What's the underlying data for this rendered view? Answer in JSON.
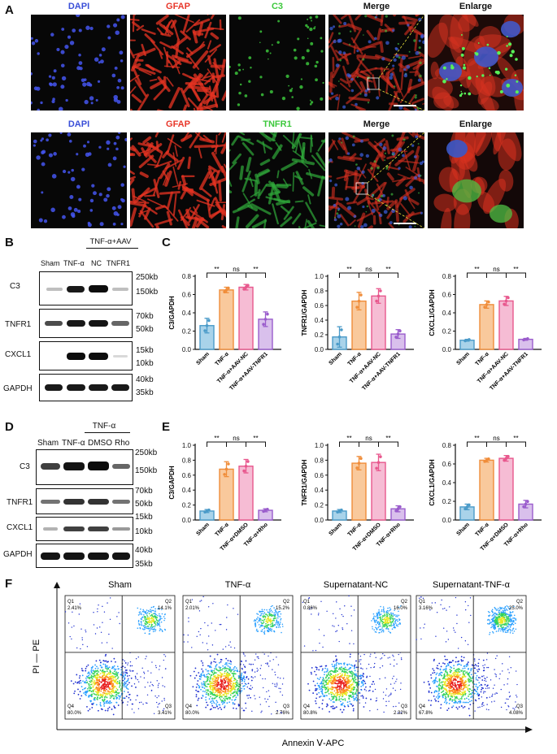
{
  "panels": {
    "A": "A",
    "B": "B",
    "C": "C",
    "D": "D",
    "E": "E",
    "F": "F"
  },
  "panelA": {
    "row1": [
      "DAPI",
      "GFAP",
      "C3",
      "Merge",
      "Enlarge"
    ],
    "row2": [
      "DAPI",
      "GFAP",
      "TNFR1",
      "Merge",
      "Enlarge"
    ],
    "colors": {
      "DAPI": "#3a4fd8",
      "GFAP": "#e8372a",
      "C3": "#3cc83c",
      "TNFR1": "#3cc83c",
      "Merge": "#111111",
      "Enlarge": "#111111"
    }
  },
  "panelB": {
    "lanes": [
      "Sham",
      "TNF-α",
      "NC",
      "TNFR1"
    ],
    "group": "TNF-α+AAV",
    "rows": [
      "C3",
      "TNFR1",
      "CXCL1",
      "GAPDH"
    ],
    "mw": [
      "250kb",
      "150kb",
      "70kb",
      "50kb",
      "15kb",
      "10kb",
      "40kb",
      "35kb"
    ]
  },
  "panelD": {
    "lanes": [
      "Sham",
      "TNF-α",
      "DMSO",
      "Rho"
    ],
    "group": "TNF-α",
    "rows": [
      "C3",
      "TNFR1",
      "CXCL1",
      "GAPDH"
    ],
    "mw": [
      "250kb",
      "150kb",
      "70kb",
      "50kb",
      "15kb",
      "10kb",
      "40kb",
      "35kb"
    ]
  },
  "chart_data": [
    {
      "type": "bar",
      "panel": "C",
      "ylabel": "C3/GAPDH",
      "ylim": [
        0,
        0.8
      ],
      "yticks": [
        "0.0",
        "0.2",
        "0.4",
        "0.6",
        "0.8"
      ],
      "categories": [
        "Sham",
        "TNF-α",
        "TNF-α+AAV-NC",
        "TNF-α+AAV-TNFR1"
      ],
      "values": [
        0.26,
        0.65,
        0.68,
        0.33
      ],
      "sig": [
        "**",
        "ns",
        "**"
      ]
    },
    {
      "type": "bar",
      "panel": "C",
      "ylabel": "TNFR1/GAPDH",
      "ylim": [
        0,
        1.0
      ],
      "yticks": [
        "0.0",
        "0.2",
        "0.4",
        "0.6",
        "0.8",
        "1.0"
      ],
      "categories": [
        "Sham",
        "TNF-α",
        "TNF-α+AAV-NC",
        "TNF-α+AAV-TNFR1"
      ],
      "values": [
        0.17,
        0.66,
        0.73,
        0.21
      ],
      "sig": [
        "**",
        "ns",
        "**"
      ]
    },
    {
      "type": "bar",
      "panel": "C",
      "ylabel": "CXCL1/GAPDH",
      "ylim": [
        0,
        0.8
      ],
      "yticks": [
        "0.0",
        "0.2",
        "0.4",
        "0.6",
        "0.8"
      ],
      "categories": [
        "Sham",
        "TNF-α",
        "TNF-α+AAV-NC",
        "TNF-α+AAV-TNFR1"
      ],
      "values": [
        0.1,
        0.49,
        0.53,
        0.11
      ],
      "sig": [
        "**",
        "ns",
        "**"
      ]
    },
    {
      "type": "bar",
      "panel": "E",
      "ylabel": "C3/GAPDH",
      "ylim": [
        0,
        1.0
      ],
      "yticks": [
        "0.0",
        "0.2",
        "0.4",
        "0.6",
        "0.8",
        "1.0"
      ],
      "categories": [
        "Sham",
        "TNF-α",
        "TNF-α+DMSO",
        "TNF-α+Rho"
      ],
      "values": [
        0.12,
        0.68,
        0.72,
        0.13
      ],
      "sig": [
        "**",
        "ns",
        "**"
      ]
    },
    {
      "type": "bar",
      "panel": "E",
      "ylabel": "TNFR1/GAPDH",
      "ylim": [
        0,
        1.0
      ],
      "yticks": [
        "0.0",
        "0.2",
        "0.4",
        "0.6",
        "0.8",
        "1.0"
      ],
      "categories": [
        "Sham",
        "TNF-α",
        "TNF-α+DMSO",
        "TNF-α+Rho"
      ],
      "values": [
        0.12,
        0.76,
        0.77,
        0.15
      ],
      "sig": [
        "**",
        "ns",
        "**"
      ]
    },
    {
      "type": "bar",
      "panel": "E",
      "ylabel": "CXCL1/GAPDH",
      "ylim": [
        0,
        0.8
      ],
      "yticks": [
        "0.0",
        "0.2",
        "0.4",
        "0.6",
        "0.8"
      ],
      "categories": [
        "Sham",
        "TNF-α",
        "TNF-α+DMSO",
        "TNF-α+Rho"
      ],
      "values": [
        0.14,
        0.64,
        0.66,
        0.17
      ],
      "sig": [
        "**",
        "ns",
        "**"
      ]
    },
    {
      "type": "scatter",
      "panel": "F",
      "plots": [
        {
          "title": "Sham",
          "Q1": "Q1\n2.41%",
          "Q2": "Q2\n14.1%",
          "Q3": "Q3\n3.41%",
          "Q4": "Q4\n80.0%"
        },
        {
          "title": "TNF-α",
          "Q1": "Q1\n2.01%",
          "Q2": "Q2\n15.2%",
          "Q3": "Q3\n2.76%",
          "Q4": "Q4\n80.0%"
        },
        {
          "title": "Supernatant-NC",
          "Q1": "Q1\n0.86%",
          "Q2": "Q2\n16.0%",
          "Q3": "Q3\n2.32%",
          "Q4": "Q4\n80.8%"
        },
        {
          "title": "Supernatant-TNF-α",
          "Q1": "Q1\n3.16%",
          "Q2": "Q2\n25.0%",
          "Q3": "Q3\n4.08%",
          "Q4": "Q4\n67.8%"
        }
      ],
      "xlabel": "Annexin Ⅴ-APC",
      "ylabel": "PI — PE"
    }
  ],
  "bar_colors": {
    "fill": [
      "#a9d3ea",
      "#f9c99c",
      "#f6bcd4",
      "#d9c0ec"
    ],
    "stroke": [
      "#4b9bc9",
      "#f08d3a",
      "#e8578d",
      "#9a5ccc"
    ]
  }
}
